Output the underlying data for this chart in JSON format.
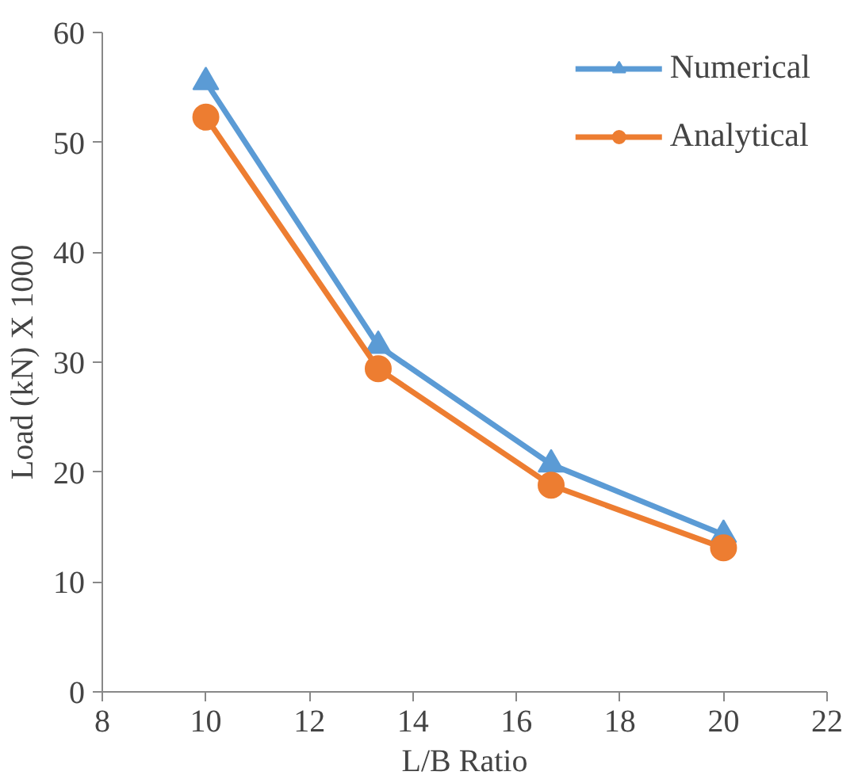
{
  "chart_data": {
    "type": "line",
    "xlabel": "L/B Ratio",
    "ylabel": "Load (kN) X 1000",
    "x": [
      10,
      13.33,
      16.67,
      20
    ],
    "series": [
      {
        "name": "Numerical",
        "color": "#5b9bd5",
        "values": [
          55.5,
          31.5,
          20.7,
          14.3
        ],
        "marker": "triangle"
      },
      {
        "name": "Analytical",
        "color": "#ed7d31",
        "values": [
          52.3,
          29.4,
          18.8,
          13.1
        ],
        "marker": "circle"
      }
    ],
    "xlim": [
      8,
      22
    ],
    "xticks": [
      8,
      10,
      12,
      14,
      16,
      18,
      20,
      22
    ],
    "ylim": [
      0,
      60
    ],
    "yticks": [
      0,
      10,
      20,
      30,
      40,
      50,
      60
    ],
    "grid": false,
    "legend": "top right",
    "line_style": "solid"
  }
}
